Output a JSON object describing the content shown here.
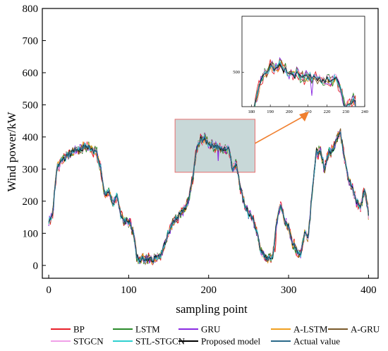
{
  "chart_data": {
    "type": "line",
    "xlabel": "sampling point",
    "ylabel": "Wind power/kW",
    "xlim": [
      -8,
      412
    ],
    "ylim": [
      -40,
      800
    ],
    "xticks": [
      0,
      100,
      200,
      300,
      400
    ],
    "yticks": [
      0,
      100,
      200,
      300,
      400,
      500,
      600,
      700,
      800
    ],
    "grid": false,
    "legend_position": "bottom",
    "colors": {
      "BP": "#e8202a",
      "LSTM": "#2a8a2a",
      "GRU": "#8a2be2",
      "A-LSTM": "#f0a020",
      "A-GRU": "#7a5a2a",
      "STGCN": "#f0a0e8",
      "STL-STGCN": "#30d0d0",
      "Proposed model": "#000000",
      "Actual value": "#2a6a8a",
      "highlight_fill": "#c8d8d8",
      "highlight_stroke": "#e87070",
      "arrow": "#f08030"
    },
    "series_names": [
      "BP",
      "LSTM",
      "GRU",
      "A-LSTM",
      "A-GRU",
      "STGCN",
      "STL-STGCN",
      "Proposed model",
      "Actual value"
    ],
    "actual_value": {
      "x": [
        0,
        5,
        10,
        15,
        20,
        25,
        30,
        35,
        40,
        45,
        50,
        55,
        60,
        65,
        70,
        75,
        80,
        85,
        90,
        95,
        100,
        105,
        110,
        115,
        120,
        125,
        130,
        135,
        140,
        145,
        150,
        155,
        160,
        165,
        170,
        175,
        180,
        185,
        190,
        195,
        200,
        205,
        210,
        215,
        220,
        225,
        230,
        235,
        240,
        245,
        250,
        255,
        260,
        265,
        270,
        275,
        280,
        285,
        290,
        295,
        300,
        305,
        310,
        315,
        320,
        325,
        330,
        335,
        340,
        345,
        350,
        355,
        360,
        365,
        370,
        375,
        380,
        385,
        390,
        395,
        400
      ],
      "y": [
        135,
        165,
        300,
        325,
        335,
        345,
        355,
        360,
        365,
        370,
        368,
        362,
        350,
        300,
        225,
        225,
        190,
        220,
        160,
        135,
        135,
        115,
        25,
        20,
        20,
        25,
        20,
        30,
        30,
        65,
        105,
        135,
        145,
        160,
        175,
        200,
        270,
        360,
        390,
        395,
        380,
        375,
        370,
        365,
        360,
        370,
        300,
        315,
        240,
        190,
        160,
        145,
        110,
        50,
        25,
        20,
        25,
        130,
        195,
        135,
        120,
        70,
        45,
        35,
        100,
        95,
        250,
        355,
        350,
        300,
        350,
        360,
        400,
        410,
        340,
        270,
        235,
        200,
        180,
        240,
        160
      ]
    },
    "highlight_region": {
      "x": [
        158,
        258
      ],
      "y": [
        290,
        455
      ]
    },
    "inset": {
      "xlim": [
        175,
        240
      ],
      "ylim": [
        420,
        630
      ],
      "xticks": [
        180,
        190,
        200,
        210,
        220,
        230,
        240
      ],
      "ytick_label": "500",
      "ytick_value": 500
    }
  }
}
